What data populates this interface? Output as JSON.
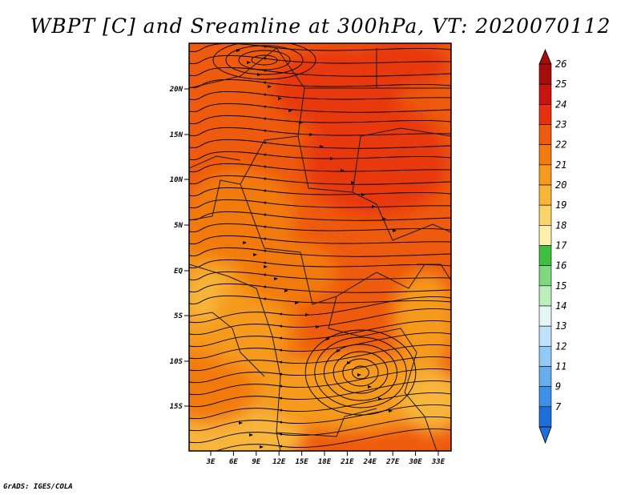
{
  "title": "WBPT [C] and Sreamline at 300hPa, VT: 2020070112",
  "credit": "GrADS: IGES/COLA",
  "map": {
    "lat_labels": [
      "20N",
      "15N",
      "10N",
      "5N",
      "EQ",
      "5S",
      "10S",
      "15S"
    ],
    "lon_labels": [
      "3E",
      "6E",
      "9E",
      "12E",
      "15E",
      "18E",
      "21E",
      "24E",
      "27E",
      "30E",
      "33E"
    ],
    "field_colors": {
      "hot": "#e8380f",
      "warm": "#ee5a0e",
      "mid": "#f27a10",
      "mild": "#f59a1c",
      "cool": "#f7b53a"
    }
  },
  "colorbar": {
    "labels": [
      "26",
      "25",
      "24",
      "23",
      "22",
      "21",
      "20",
      "19",
      "18",
      "17",
      "16",
      "15",
      "14",
      "13",
      "12",
      "11",
      "9",
      "7"
    ],
    "colors": [
      "#a50d0d",
      "#c8140f",
      "#e6300f",
      "#ee5a0e",
      "#f27a10",
      "#f59a1c",
      "#f7b53a",
      "#fad36b",
      "#fdf0ac",
      "#3fbf3f",
      "#7fd87f",
      "#bdefbd",
      "#e4f7f7",
      "#bfe3fa",
      "#93c9f5",
      "#68aeee",
      "#3d90e6",
      "#1f6fd9"
    ]
  }
}
